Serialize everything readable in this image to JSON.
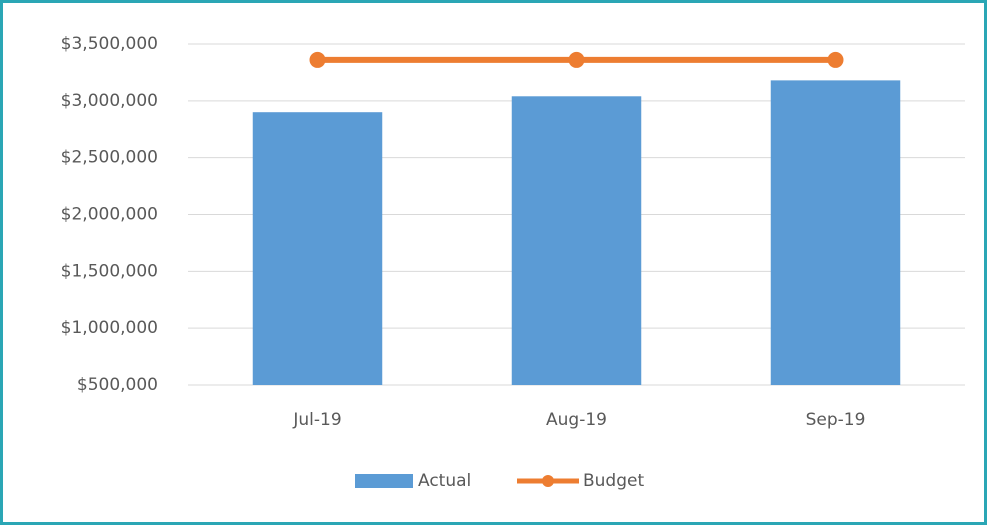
{
  "chart_data": {
    "type": "bar",
    "categories": [
      "Jul-19",
      "Aug-19",
      "Sep-19"
    ],
    "series": [
      {
        "name": "Actual",
        "type": "bar",
        "color": "#5b9bd5",
        "values": [
          2900000,
          3040000,
          3180000
        ]
      },
      {
        "name": "Budget",
        "type": "line",
        "color": "#ed7d31",
        "values": [
          3360000,
          3360000,
          3360000
        ]
      }
    ],
    "ylim": [
      500000,
      3500000
    ],
    "yticks": [
      {
        "value": 500000,
        "label": "$500,000"
      },
      {
        "value": 1000000,
        "label": "$1,000,000"
      },
      {
        "value": 1500000,
        "label": "$1,500,000"
      },
      {
        "value": 2000000,
        "label": "$2,000,000"
      },
      {
        "value": 2500000,
        "label": "$2,500,000"
      },
      {
        "value": 3000000,
        "label": "$3,000,000"
      },
      {
        "value": 3500000,
        "label": "$3,500,000"
      }
    ],
    "grid": true,
    "legend": "bottom"
  }
}
